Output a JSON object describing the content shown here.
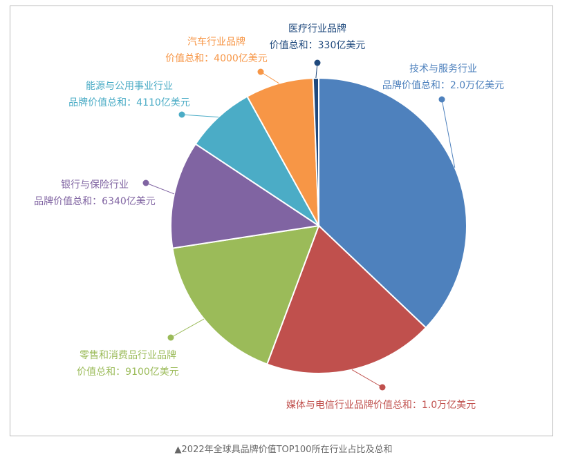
{
  "chart_data": {
    "type": "pie",
    "unit": "亿美元",
    "slices": [
      {
        "name": "技术与服务行业",
        "value": 20000,
        "color": "#4e81bd",
        "label_lines": [
          "技术与服务行业",
          "品牌价值总和：2.0万亿美元"
        ]
      },
      {
        "name": "媒体与电信行业",
        "value": 10000,
        "color": "#c0504d",
        "label_lines": [
          "媒体与电信行业品牌价值总和：1.0万亿美元"
        ]
      },
      {
        "name": "零售和消费品行业",
        "value": 9100,
        "color": "#9bbb59",
        "label_lines": [
          "零售和消费品行业品牌",
          "价值总和：9100亿美元"
        ]
      },
      {
        "name": "银行与保险行业",
        "value": 6340,
        "color": "#8064a2",
        "label_lines": [
          "银行与保险行业",
          "品牌价值总和：6340亿美元"
        ]
      },
      {
        "name": "能源与公用事业行业",
        "value": 4110,
        "color": "#4bacc6",
        "label_lines": [
          "能源与公用事业行业",
          "品牌价值总和：4110亿美元"
        ]
      },
      {
        "name": "汽车行业",
        "value": 4000,
        "color": "#f79646",
        "label_lines": [
          "汽车行业品牌",
          "价值总和：4000亿美元"
        ]
      },
      {
        "name": "医疗行业",
        "value": 330,
        "color": "#1f497d",
        "label_lines": [
          "医疗行业品牌",
          "价值总和：330亿美元"
        ]
      }
    ]
  },
  "caption": "▲2022年全球具品牌价值TOP100所在行业占比及总和"
}
